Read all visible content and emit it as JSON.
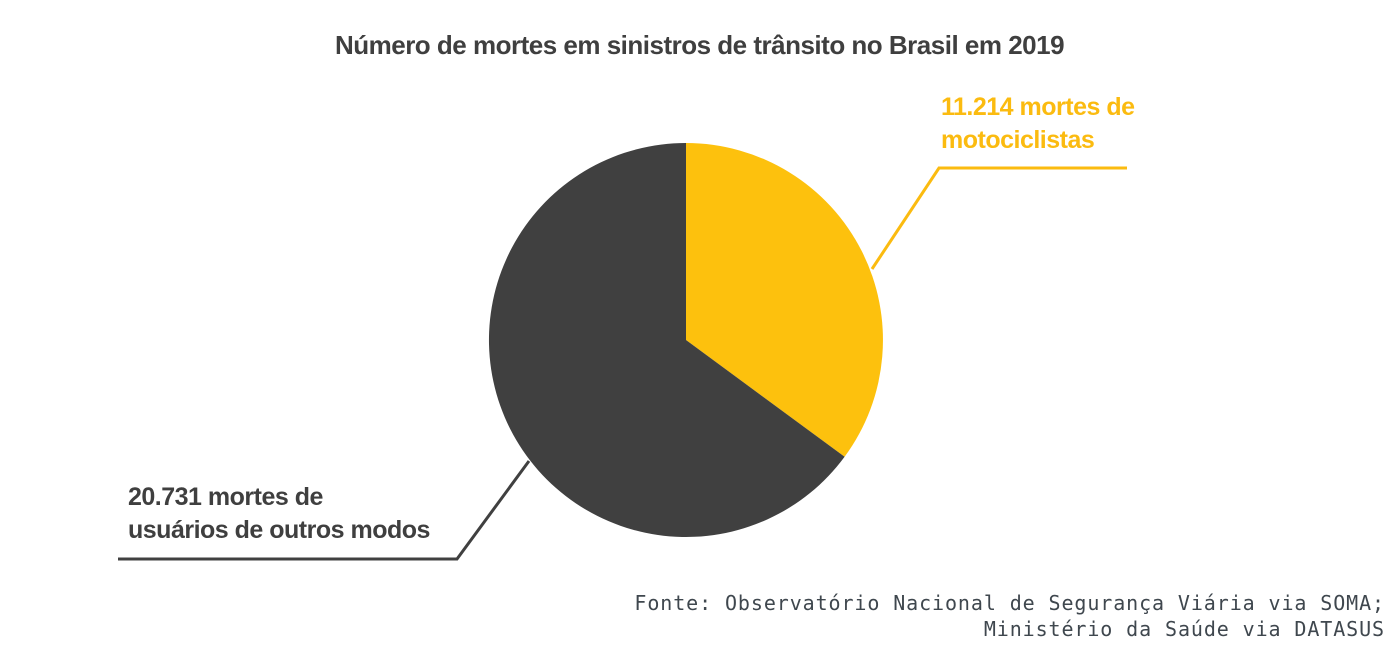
{
  "chart_data": {
    "type": "pie",
    "title": "Número de mortes em sinistros de trânsito no Brasil em 2019",
    "start_angle_deg": 0,
    "direction": "clockwise",
    "legend_position": "callout-labels",
    "slices": [
      {
        "name": "motociclistas",
        "value": 11214,
        "color": "#FDC10D",
        "label_line1": "11.214 mortes de",
        "label_line2": "motociclistas"
      },
      {
        "name": "usuarios-de-outros-modos",
        "value": 20731,
        "color": "#404040",
        "label_line1": "20.731 mortes de",
        "label_line2": "usuários de outros modos"
      }
    ],
    "source_line1": "Fonte: Observatório Nacional de Segurança Viária via SOMA;",
    "source_line2": "Ministério da Saúde via DATASUS"
  },
  "colors": {
    "background": "#FFFFFF",
    "title_text": "#3F3F3F",
    "yellow_accent": "#FBBB10",
    "dark_accent": "#404040",
    "source_text": "#3F474E"
  }
}
